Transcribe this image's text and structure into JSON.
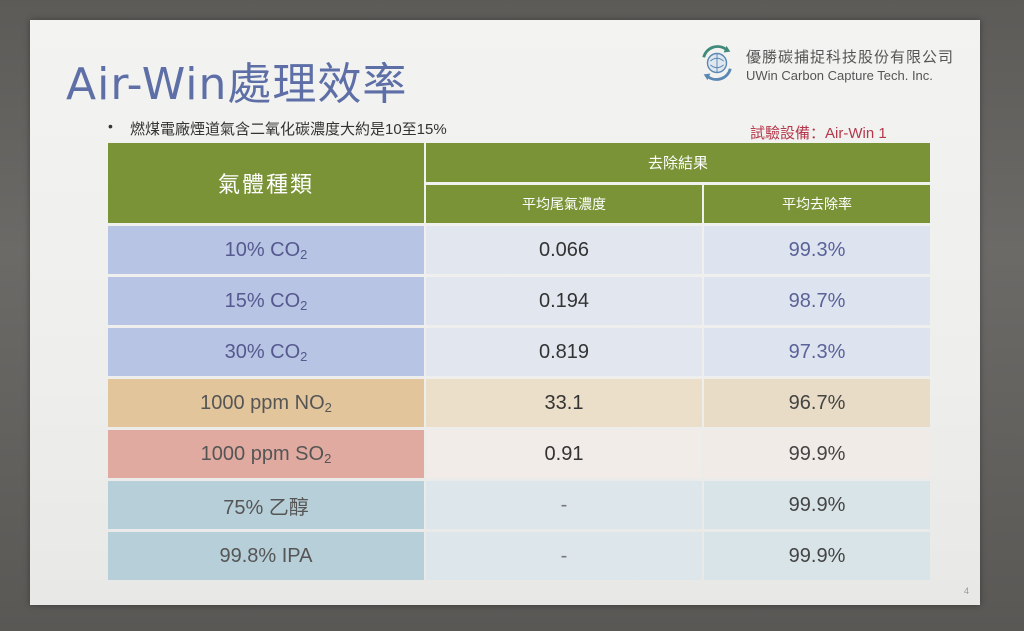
{
  "slide": {
    "title": "Air-Win處理效率",
    "company_cn": "優勝碳捕捉科技股份有限公司",
    "company_en": "UWin Carbon Capture Tech. Inc.",
    "bullet": "燃煤電廠煙道氣含二氧化碳濃度大約是10至15%",
    "bullet_marker": "•",
    "equipment": "試驗設備：Air-Win 1",
    "page_number": "4",
    "logo_icon": "recycle-globe-icon"
  },
  "table": {
    "header_gas": "氣體種類",
    "header_result": "去除結果",
    "header_avg_conc": "平均尾氣濃度",
    "header_avg_rate": "平均去除率",
    "rows": [
      {
        "gas_main": "10% CO",
        "gas_sub": "2",
        "conc": "0.066",
        "rate": "99.3%"
      },
      {
        "gas_main": "15% CO",
        "gas_sub": "2",
        "conc": "0.194",
        "rate": "98.7%"
      },
      {
        "gas_main": "30% CO",
        "gas_sub": "2",
        "conc": "0.819",
        "rate": "97.3%"
      },
      {
        "gas_main": "1000 ppm NO",
        "gas_sub": "2",
        "conc": "33.1",
        "rate": "96.7%"
      },
      {
        "gas_main": "1000 ppm SO",
        "gas_sub": "2",
        "conc": "0.91",
        "rate": "99.9%"
      },
      {
        "gas_main": "75% 乙醇",
        "gas_sub": "",
        "conc": "-",
        "rate": "99.9%"
      },
      {
        "gas_main": "99.8% IPA",
        "gas_sub": "",
        "conc": "-",
        "rate": "99.9%"
      }
    ]
  },
  "colors": {
    "header_green": "#7a9337",
    "title_blue": "#5d6fa6",
    "equipment_red": "#b5384c"
  }
}
